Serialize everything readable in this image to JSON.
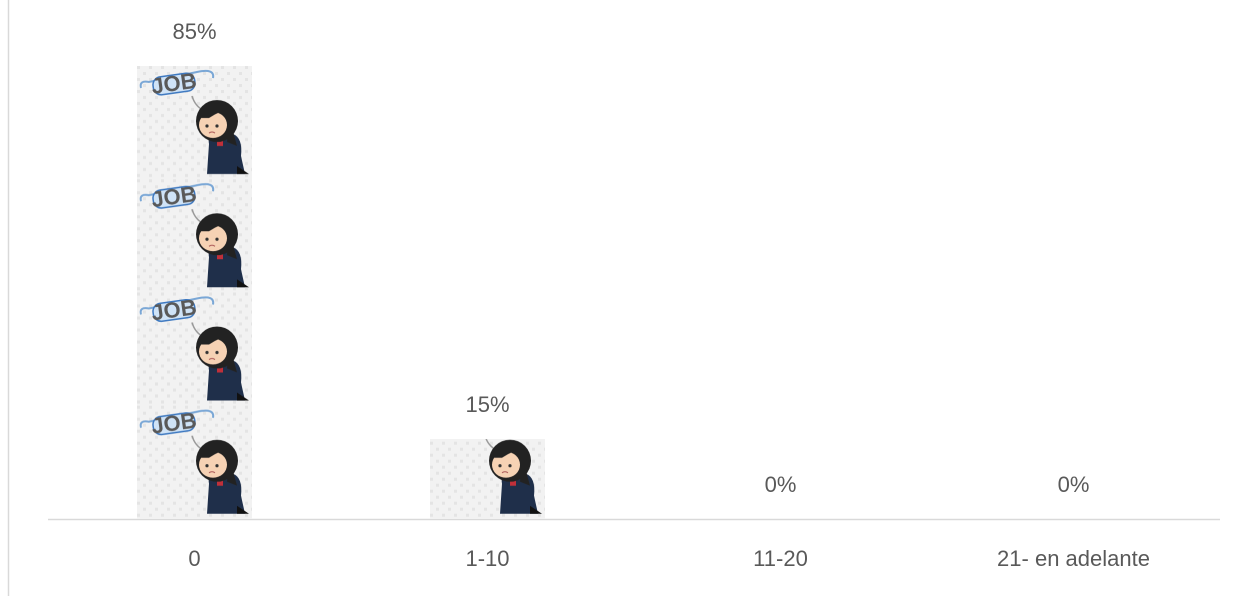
{
  "chart_data": {
    "type": "pictograph",
    "categories": [
      "0",
      "1-10",
      "11-20",
      "21- en adelante"
    ],
    "values": [
      85,
      15,
      0,
      0
    ],
    "value_labels": [
      "85%",
      "15%",
      "0%",
      "0%"
    ]
  }
}
